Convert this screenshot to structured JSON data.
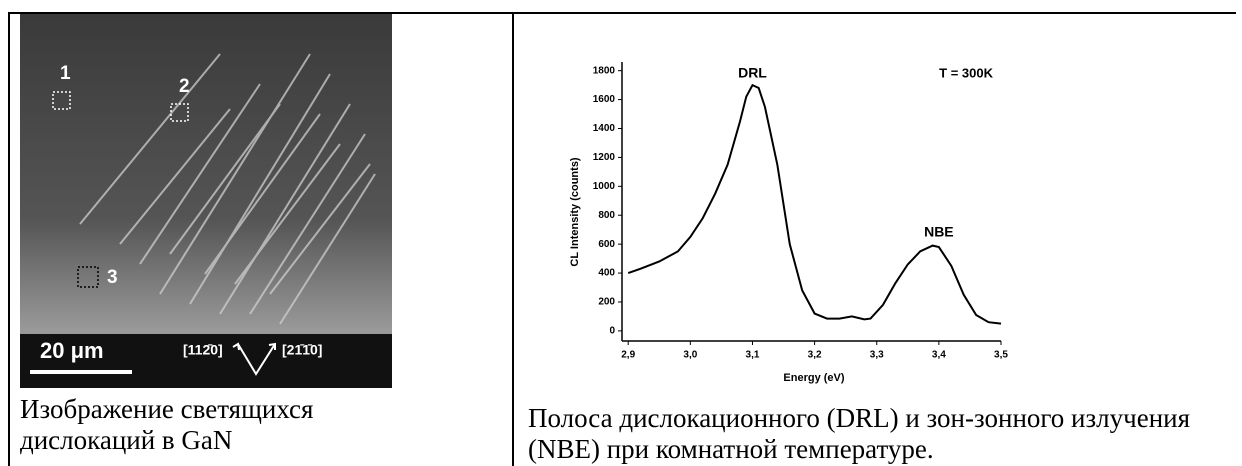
{
  "left": {
    "image_labels": [
      "1",
      "2",
      "3"
    ],
    "scale_bar": "20 μm",
    "directions": [
      "[112̄0]",
      "[21̄1̄0]"
    ],
    "caption": "Изображение светящихся дислокаций в GaN"
  },
  "chart_data": {
    "type": "line",
    "x_label": "Energy (eV)",
    "y_label": "CL Intensity (counts)",
    "annotations": [
      "DRL",
      "NBE",
      "T = 300K"
    ],
    "x": [
      2.9,
      2.92,
      2.95,
      2.98,
      3.0,
      3.02,
      3.04,
      3.06,
      3.08,
      3.09,
      3.1,
      3.11,
      3.12,
      3.14,
      3.16,
      3.18,
      3.2,
      3.22,
      3.24,
      3.26,
      3.28,
      3.29,
      3.31,
      3.33,
      3.35,
      3.37,
      3.39,
      3.4,
      3.42,
      3.44,
      3.46,
      3.48,
      3.5
    ],
    "values": [
      400,
      430,
      480,
      550,
      650,
      780,
      950,
      1150,
      1450,
      1620,
      1700,
      1680,
      1550,
      1150,
      600,
      280,
      120,
      85,
      85,
      100,
      80,
      85,
      180,
      330,
      460,
      550,
      590,
      580,
      450,
      250,
      110,
      60,
      50
    ],
    "color": "#000000",
    "xlim": [
      2.89,
      3.5
    ],
    "ylim": [
      -70,
      1860
    ],
    "xticks": [
      {
        "value": 2.9,
        "label": "2,9"
      },
      {
        "value": 3.0,
        "label": "3,0"
      },
      {
        "value": 3.1,
        "label": "3,1"
      },
      {
        "value": 3.2,
        "label": "3,2"
      },
      {
        "value": 3.3,
        "label": "3,3"
      },
      {
        "value": 3.4,
        "label": "3,4"
      },
      {
        "value": 3.5,
        "label": "3,5"
      }
    ],
    "yticks": [
      0,
      200,
      400,
      600,
      800,
      1000,
      1200,
      1400,
      1600,
      1800
    ],
    "caption": "Полоса дислокационного (DRL) и зон-зонного излучения (NBE) при комнатной температуре."
  }
}
